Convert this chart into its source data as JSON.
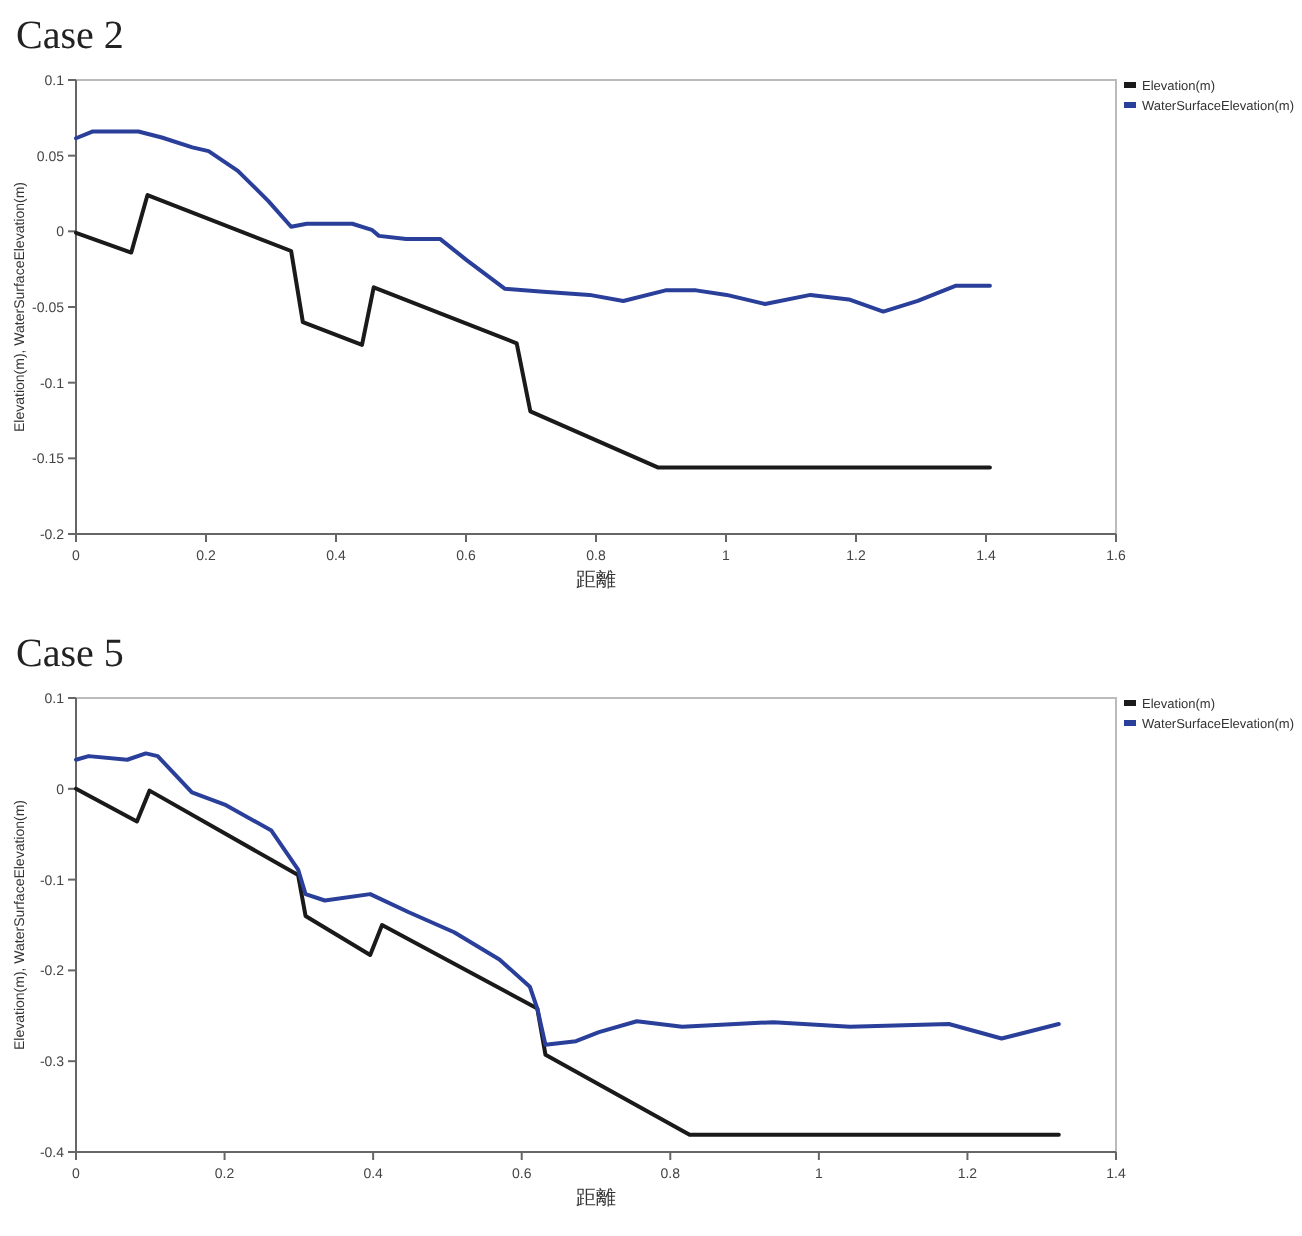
{
  "chart_data": [
    {
      "type": "line",
      "title": "Case 2",
      "xlabel": "距離",
      "ylabel": "Elevation(m), WaterSurfaceElevation(m)",
      "legend": "top right",
      "grid": false,
      "marker": "none",
      "line_style": "solid",
      "xlim": [
        0,
        1.6
      ],
      "xticks": [
        0,
        0.2,
        0.4,
        0.6,
        0.8,
        1,
        1.2,
        1.4,
        1.6
      ],
      "ylim": [
        -0.2,
        0.1
      ],
      "yticks": [
        -0.2,
        -0.15,
        -0.1,
        -0.05,
        0,
        0.05,
        0.1
      ],
      "series": [
        {
          "name": "Elevation(m)",
          "color": "#1a1a1a",
          "x": [
            0,
            0.085,
            0.11,
            0.331,
            0.349,
            0.44,
            0.458,
            0.678,
            0.699,
            0.895,
            1.406
          ],
          "values": [
            -0.001,
            -0.014,
            0.024,
            -0.013,
            -0.06,
            -0.075,
            -0.037,
            -0.074,
            -0.119,
            -0.156,
            -0.156
          ]
        },
        {
          "name": "WaterSurfaceElevation(m)",
          "color": "#2a3f9a",
          "x": [
            0,
            0.026,
            0.096,
            0.132,
            0.179,
            0.204,
            0.249,
            0.296,
            0.331,
            0.355,
            0.425,
            0.455,
            0.466,
            0.508,
            0.56,
            0.601,
            0.66,
            0.719,
            0.79,
            0.842,
            0.907,
            0.954,
            1.001,
            1.06,
            1.13,
            1.189,
            1.242,
            1.295,
            1.353,
            1.406
          ],
          "values": [
            0.0615,
            0.066,
            0.066,
            0.062,
            0.0555,
            0.053,
            0.04,
            0.02,
            0.003,
            0.005,
            0.005,
            0.001,
            -0.003,
            -0.005,
            -0.005,
            -0.019,
            -0.038,
            -0.04,
            -0.042,
            -0.046,
            -0.039,
            -0.039,
            -0.042,
            -0.048,
            -0.042,
            -0.045,
            -0.053,
            -0.046,
            -0.036,
            -0.036
          ]
        }
      ]
    },
    {
      "type": "line",
      "title": "Case 5",
      "xlabel": "距離",
      "ylabel": "Elevation(m), WaterSurfaceElevation(m)",
      "legend": "top right",
      "grid": false,
      "marker": "none",
      "line_style": "solid",
      "xlim": [
        0,
        1.4
      ],
      "xticks": [
        0,
        0.2,
        0.4,
        0.6,
        0.8,
        1,
        1.2,
        1.4
      ],
      "ylim": [
        -0.4,
        0.1
      ],
      "yticks": [
        -0.4,
        -0.3,
        -0.2,
        -0.1,
        0,
        0.1
      ],
      "series": [
        {
          "name": "Elevation(m)",
          "color": "#1a1a1a",
          "x": [
            0,
            0.082,
            0.099,
            0.299,
            0.309,
            0.396,
            0.412,
            0.621,
            0.632,
            0.826,
            1.323
          ],
          "values": [
            0,
            -0.036,
            -0.002,
            -0.095,
            -0.14,
            -0.183,
            -0.15,
            -0.242,
            -0.293,
            -0.381,
            -0.381
          ]
        },
        {
          "name": "WaterSurfaceElevation(m)",
          "color": "#2a3f9a",
          "x": [
            0,
            0.017,
            0.069,
            0.094,
            0.11,
            0.156,
            0.202,
            0.263,
            0.299,
            0.309,
            0.335,
            0.396,
            0.448,
            0.509,
            0.57,
            0.611,
            0.621,
            0.632,
            0.673,
            0.704,
            0.755,
            0.816,
            0.888,
            0.939,
            1.042,
            1.175,
            1.246,
            1.323
          ],
          "values": [
            0.032,
            0.036,
            0.032,
            0.039,
            0.036,
            -0.004,
            -0.018,
            -0.046,
            -0.089,
            -0.116,
            -0.123,
            -0.116,
            -0.136,
            -0.158,
            -0.188,
            -0.218,
            -0.242,
            -0.282,
            -0.278,
            -0.268,
            -0.256,
            -0.262,
            -0.259,
            -0.257,
            -0.262,
            -0.259,
            -0.275,
            -0.259
          ]
        }
      ]
    }
  ]
}
